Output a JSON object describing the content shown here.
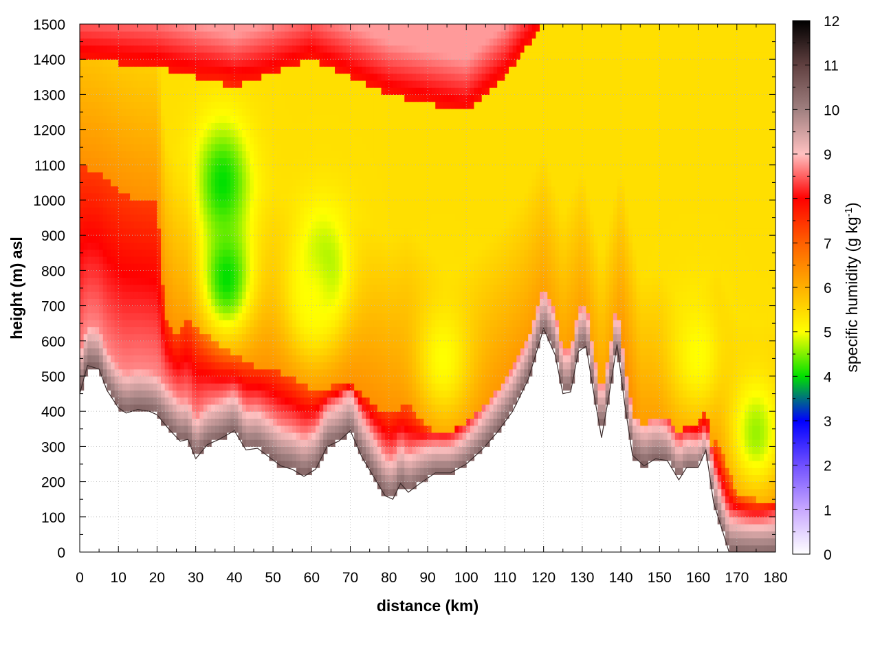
{
  "chart_data": {
    "type": "heatmap",
    "xlabel": "distance (km)",
    "ylabel": "height (m) asl",
    "colorbar_label": "specific humidity (g kg",
    "colorbar_label_sup": "-1",
    "colorbar_label_end": ")",
    "xlim": [
      0,
      180
    ],
    "ylim": [
      0,
      1500
    ],
    "clim": [
      0,
      12
    ],
    "x_ticks": [
      "0",
      "10",
      "20",
      "30",
      "40",
      "50",
      "60",
      "70",
      "80",
      "90",
      "100",
      "110",
      "120",
      "130",
      "140",
      "150",
      "160",
      "170",
      "180"
    ],
    "y_ticks": [
      "0",
      "100",
      "200",
      "300",
      "400",
      "500",
      "600",
      "700",
      "800",
      "900",
      "1000",
      "1100",
      "1200",
      "1300",
      "1400",
      "1500"
    ],
    "colorbar_ticks": [
      "0",
      "1",
      "2",
      "3",
      "4",
      "5",
      "6",
      "7",
      "8",
      "9",
      "10",
      "11",
      "12"
    ],
    "grid": true,
    "colormap": [
      {
        "value": 0,
        "color": "#ffffff"
      },
      {
        "value": 1,
        "color": "#c8a8ff"
      },
      {
        "value": 2,
        "color": "#7050ff"
      },
      {
        "value": 3,
        "color": "#0000ff"
      },
      {
        "value": 4,
        "color": "#00e000"
      },
      {
        "value": 5,
        "color": "#ffff00"
      },
      {
        "value": 6,
        "color": "#ffb000"
      },
      {
        "value": 7,
        "color": "#ff6000"
      },
      {
        "value": 8,
        "color": "#ff0000"
      },
      {
        "value": 9,
        "color": "#ffc0c0"
      },
      {
        "value": 10,
        "color": "#a08080"
      },
      {
        "value": 11,
        "color": "#604040"
      },
      {
        "value": 12,
        "color": "#000000"
      }
    ],
    "surface_height": [
      [
        0,
        450
      ],
      [
        2,
        530
      ],
      [
        5,
        520
      ],
      [
        7,
        460
      ],
      [
        10,
        410
      ],
      [
        12,
        395
      ],
      [
        15,
        405
      ],
      [
        18,
        400
      ],
      [
        20,
        390
      ],
      [
        23,
        350
      ],
      [
        26,
        315
      ],
      [
        28,
        320
      ],
      [
        30,
        265
      ],
      [
        33,
        305
      ],
      [
        36,
        320
      ],
      [
        40,
        345
      ],
      [
        43,
        290
      ],
      [
        46,
        295
      ],
      [
        49,
        270
      ],
      [
        52,
        245
      ],
      [
        55,
        235
      ],
      [
        58,
        215
      ],
      [
        61,
        235
      ],
      [
        64,
        300
      ],
      [
        67,
        315
      ],
      [
        70,
        345
      ],
      [
        73,
        270
      ],
      [
        76,
        215
      ],
      [
        79,
        160
      ],
      [
        81,
        150
      ],
      [
        83,
        195
      ],
      [
        85,
        170
      ],
      [
        88,
        195
      ],
      [
        92,
        225
      ],
      [
        96,
        225
      ],
      [
        100,
        250
      ],
      [
        104,
        290
      ],
      [
        108,
        340
      ],
      [
        112,
        400
      ],
      [
        116,
        490
      ],
      [
        120,
        635
      ],
      [
        123,
        560
      ],
      [
        125,
        450
      ],
      [
        127,
        455
      ],
      [
        129,
        570
      ],
      [
        131,
        585
      ],
      [
        133,
        450
      ],
      [
        135,
        325
      ],
      [
        137,
        450
      ],
      [
        139,
        590
      ],
      [
        141,
        420
      ],
      [
        143,
        275
      ],
      [
        146,
        245
      ],
      [
        149,
        265
      ],
      [
        152,
        260
      ],
      [
        155,
        205
      ],
      [
        157,
        240
      ],
      [
        160,
        240
      ],
      [
        162,
        290
      ],
      [
        164,
        140
      ],
      [
        166,
        70
      ],
      [
        168,
        0
      ],
      [
        175,
        0
      ],
      [
        180,
        0
      ]
    ],
    "moist_layer_top": [
      [
        0,
        1100
      ],
      [
        5,
        1080
      ],
      [
        10,
        1030
      ],
      [
        15,
        1000
      ],
      [
        20,
        990
      ],
      [
        22,
        680
      ],
      [
        25,
        600
      ],
      [
        28,
        680
      ],
      [
        30,
        640
      ],
      [
        35,
        600
      ],
      [
        40,
        560
      ],
      [
        45,
        530
      ],
      [
        50,
        520
      ],
      [
        55,
        500
      ],
      [
        60,
        460
      ],
      [
        65,
        470
      ],
      [
        70,
        480
      ],
      [
        75,
        430
      ],
      [
        80,
        390
      ],
      [
        85,
        420
      ],
      [
        90,
        360
      ],
      [
        95,
        300
      ],
      [
        100,
        320
      ],
      [
        105,
        380
      ],
      [
        110,
        440
      ],
      [
        115,
        520
      ],
      [
        120,
        650
      ],
      [
        125,
        460
      ],
      [
        130,
        600
      ],
      [
        135,
        340
      ],
      [
        140,
        600
      ],
      [
        145,
        280
      ],
      [
        150,
        300
      ],
      [
        155,
        220
      ],
      [
        160,
        250
      ],
      [
        165,
        320
      ],
      [
        170,
        170
      ],
      [
        175,
        150
      ],
      [
        180,
        150
      ]
    ],
    "dry_cores": [
      {
        "x": 37,
        "y": 1050,
        "q": 4
      },
      {
        "x": 38,
        "y": 780,
        "q": 4
      },
      {
        "x": 63,
        "y": 800,
        "q": 4.4
      },
      {
        "x": 60,
        "y": 720,
        "q": 5
      },
      {
        "x": 94,
        "y": 550,
        "q": 5
      },
      {
        "x": 175,
        "y": 340,
        "q": 4.6
      },
      {
        "x": 160,
        "y": 560,
        "q": 5
      }
    ],
    "top_moist_band": [
      [
        0,
        1400
      ],
      [
        20,
        1380
      ],
      [
        40,
        1320
      ],
      [
        60,
        1400
      ],
      [
        80,
        1300
      ],
      [
        100,
        1250
      ],
      [
        110,
        1350
      ],
      [
        120,
        1500
      ],
      [
        180,
        1500
      ]
    ]
  }
}
